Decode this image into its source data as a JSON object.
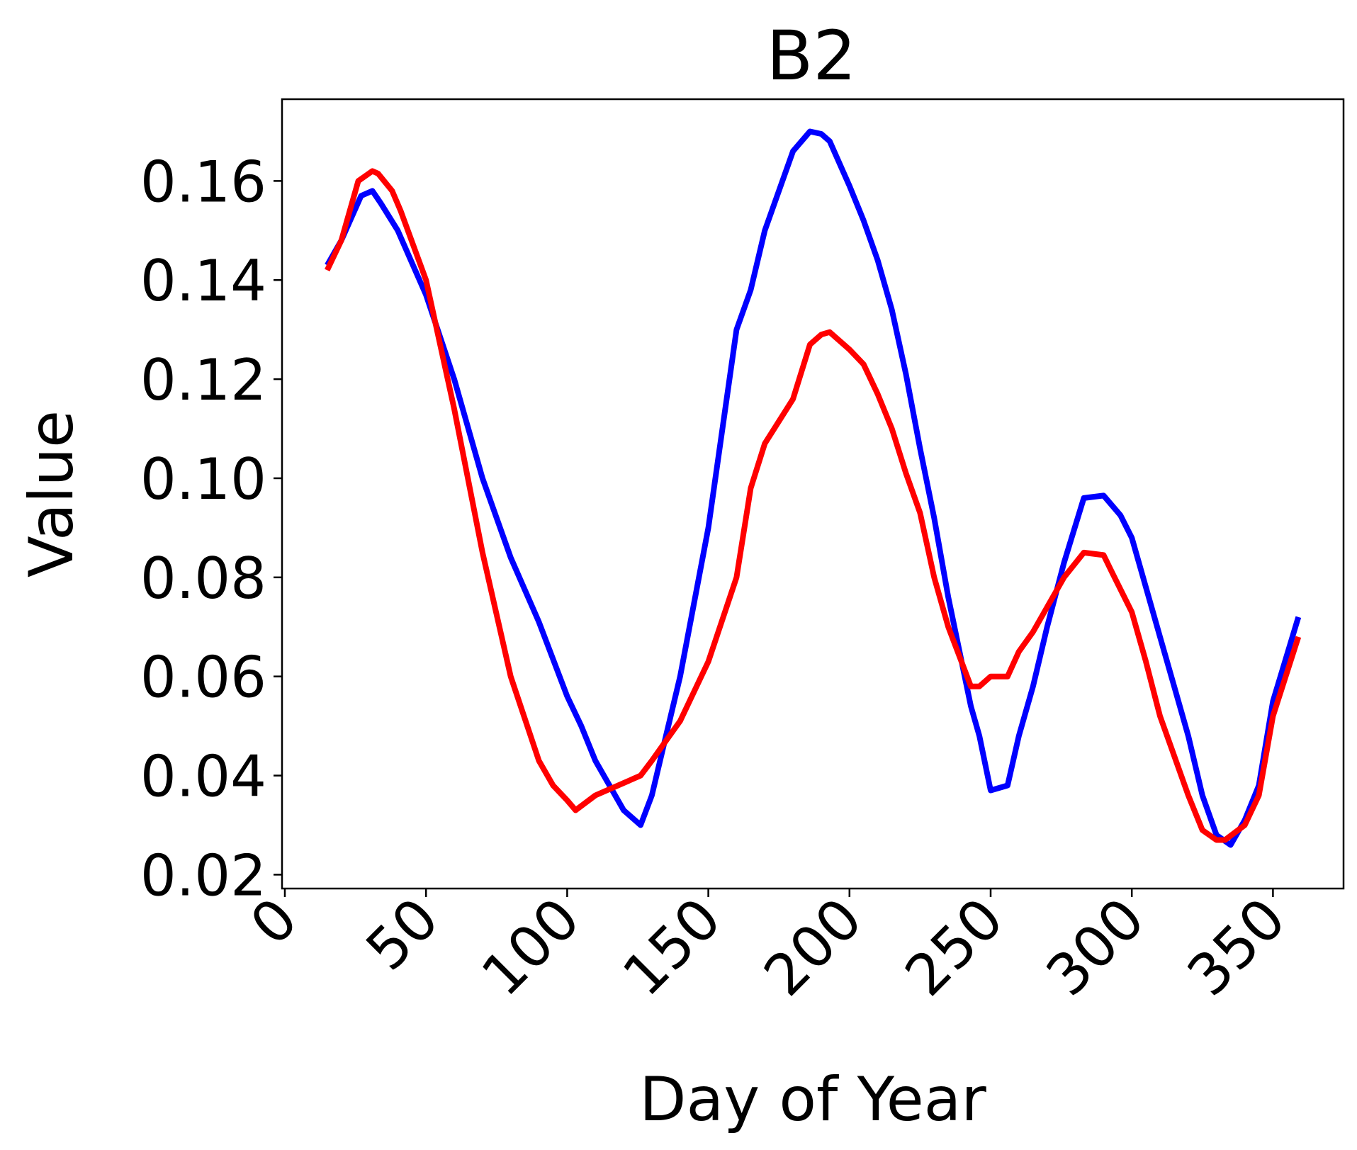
{
  "chart_data": {
    "type": "line",
    "title": "B2",
    "xlabel": "Day of Year",
    "ylabel": "Value",
    "xlim": [
      -1,
      375
    ],
    "ylim": [
      0.0172,
      0.1765
    ],
    "xticks": [
      0,
      50,
      100,
      150,
      200,
      250,
      300,
      350
    ],
    "xtick_labels": [
      "0",
      "50",
      "100",
      "150",
      "200",
      "250",
      "300",
      "350"
    ],
    "xtick_rotation": 45,
    "yticks": [
      0.02,
      0.04,
      0.06,
      0.08,
      0.1,
      0.12,
      0.14,
      0.16
    ],
    "ytick_labels": [
      "0.02",
      "0.04",
      "0.06",
      "0.08",
      "0.10",
      "0.12",
      "0.14",
      "0.16"
    ],
    "grid": false,
    "series": [
      {
        "color": "#0000ff",
        "x": [
          15,
          20,
          27,
          31,
          34,
          40,
          50,
          60,
          70,
          80,
          90,
          100,
          105,
          110,
          120,
          126,
          130,
          135,
          140,
          150,
          160,
          165,
          170,
          180,
          186,
          190,
          193,
          200,
          205,
          210,
          215,
          220,
          225,
          230,
          235,
          243,
          246,
          250,
          256,
          260,
          265,
          270,
          276,
          283,
          290,
          296,
          300,
          305,
          310,
          315,
          320,
          325,
          330,
          335,
          340,
          345,
          350,
          359
        ],
        "y": [
          0.143,
          0.148,
          0.157,
          0.158,
          0.1555,
          0.15,
          0.137,
          0.12,
          0.1,
          0.084,
          0.071,
          0.056,
          0.05,
          0.043,
          0.033,
          0.03,
          0.036,
          0.048,
          0.06,
          0.09,
          0.13,
          0.138,
          0.15,
          0.166,
          0.17,
          0.1695,
          0.168,
          0.159,
          0.152,
          0.144,
          0.134,
          0.121,
          0.106,
          0.092,
          0.076,
          0.054,
          0.048,
          0.037,
          0.038,
          0.048,
          0.058,
          0.07,
          0.083,
          0.096,
          0.0965,
          0.0925,
          0.088,
          0.078,
          0.068,
          0.058,
          0.048,
          0.036,
          0.028,
          0.026,
          0.031,
          0.038,
          0.055,
          0.072
        ]
      },
      {
        "color": "#ff0000",
        "x": [
          15,
          20,
          26,
          31,
          33,
          38,
          41,
          50,
          55,
          60,
          70,
          80,
          90,
          95,
          100,
          103,
          110,
          126,
          130,
          135,
          140,
          150,
          160,
          165,
          170,
          180,
          186,
          190,
          193,
          200,
          205,
          210,
          215,
          220,
          225,
          230,
          235,
          243,
          246,
          250,
          256,
          260,
          265,
          270,
          276,
          283,
          290,
          293,
          300,
          305,
          310,
          315,
          320,
          325,
          330,
          333,
          340,
          345,
          350,
          359
        ],
        "y": [
          0.142,
          0.148,
          0.16,
          0.162,
          0.1615,
          0.158,
          0.154,
          0.14,
          0.127,
          0.114,
          0.085,
          0.06,
          0.043,
          0.038,
          0.035,
          0.033,
          0.036,
          0.04,
          0.043,
          0.047,
          0.051,
          0.063,
          0.08,
          0.098,
          0.107,
          0.116,
          0.127,
          0.129,
          0.1295,
          0.126,
          0.123,
          0.117,
          0.11,
          0.101,
          0.093,
          0.08,
          0.07,
          0.058,
          0.058,
          0.06,
          0.06,
          0.065,
          0.069,
          0.074,
          0.08,
          0.085,
          0.0845,
          0.081,
          0.073,
          0.063,
          0.052,
          0.044,
          0.036,
          0.029,
          0.027,
          0.027,
          0.03,
          0.036,
          0.052,
          0.068
        ]
      }
    ]
  }
}
